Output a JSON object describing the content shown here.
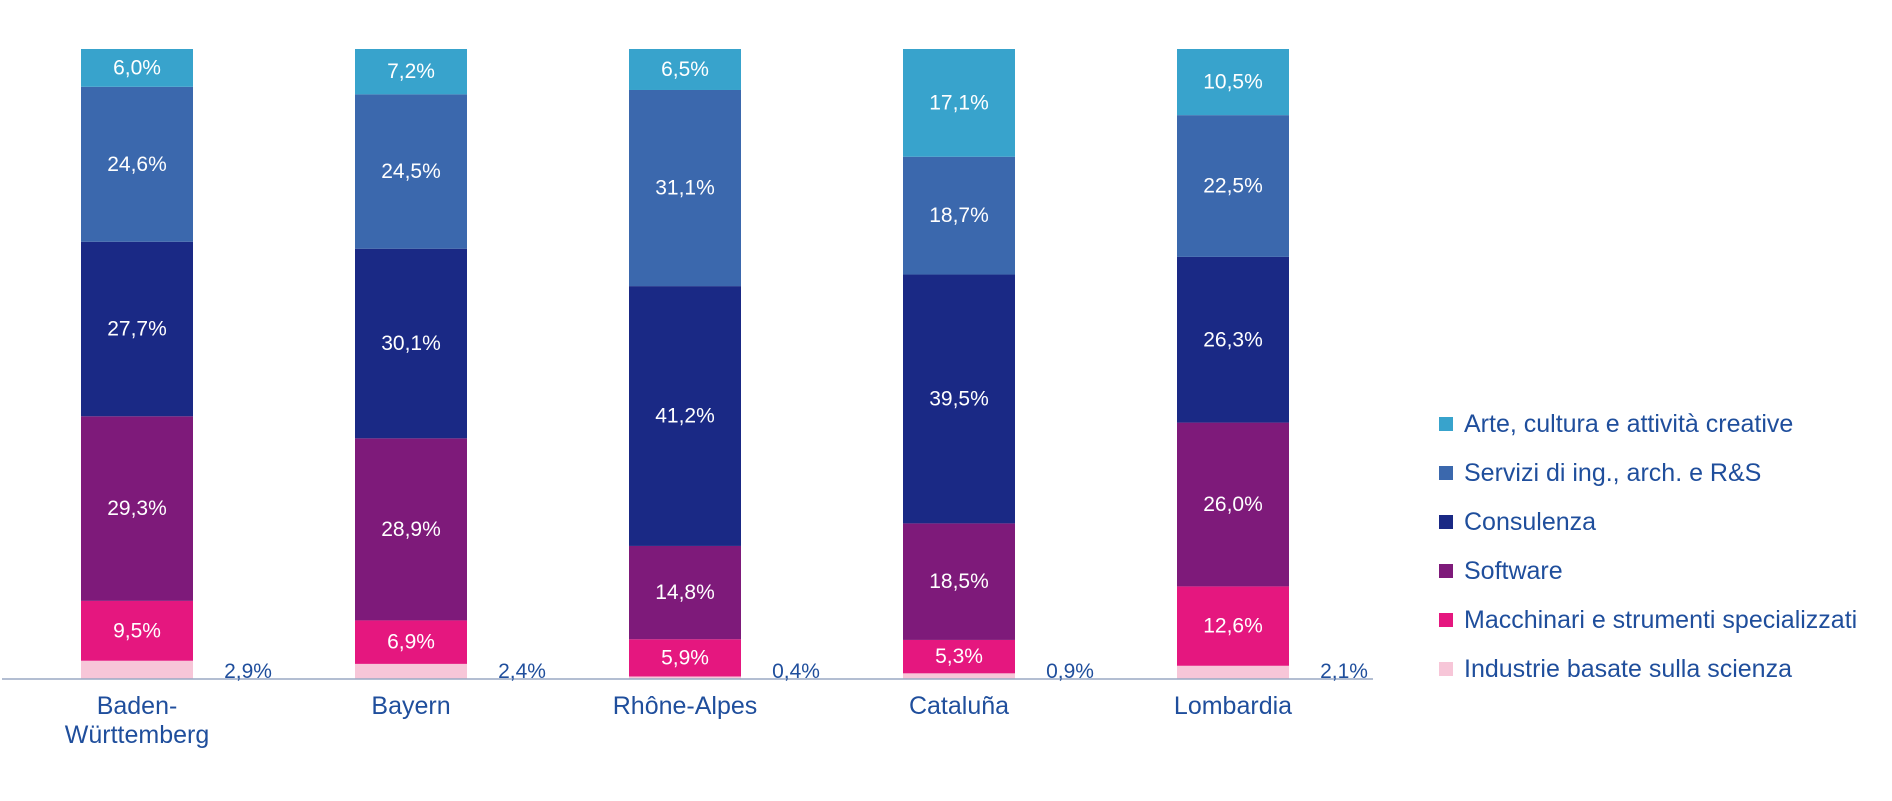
{
  "chart_data": {
    "type": "bar",
    "stacked": true,
    "categories": [
      [
        "Baden-",
        "Württemberg"
      ],
      [
        "Bayern"
      ],
      [
        "Rhône-Alpes"
      ],
      [
        "Cataluña"
      ],
      [
        "Lombardia"
      ]
    ],
    "series": [
      {
        "name": "Industrie basate sulla scienza",
        "color": "#f7c6d8",
        "values": [
          2.9,
          2.4,
          0.4,
          0.9,
          2.1
        ],
        "labels": [
          "2,9%",
          "2,4%",
          "0,4%",
          "0,9%",
          "2,1%"
        ],
        "label_outside": true
      },
      {
        "name": "Macchinari e strumenti specializzati",
        "color": "#e5177f",
        "values": [
          9.5,
          6.9,
          5.9,
          5.3,
          12.6
        ],
        "labels": [
          "9,5%",
          "6,9%",
          "5,9%",
          "5,3%",
          "12,6%"
        ]
      },
      {
        "name": "Software",
        "color": "#7e1a7a",
        "values": [
          29.3,
          28.9,
          14.8,
          18.5,
          26.0
        ],
        "labels": [
          "29,3%",
          "28,9%",
          "14,8%",
          "18,5%",
          "26,0%"
        ]
      },
      {
        "name": "Consulenza",
        "color": "#1a2985",
        "values": [
          27.7,
          30.1,
          41.2,
          39.5,
          26.3
        ],
        "labels": [
          "27,7%",
          "30,1%",
          "41,2%",
          "39,5%",
          "26,3%"
        ]
      },
      {
        "name": "Servizi di ing., arch. e R&S",
        "color": "#3b68ad",
        "values": [
          24.6,
          24.5,
          31.1,
          18.7,
          22.5
        ],
        "labels": [
          "24,6%",
          "24,5%",
          "31,1%",
          "18,7%",
          "22,5%"
        ]
      },
      {
        "name": "Arte, cultura e attività creative",
        "color": "#38a3cc",
        "values": [
          6.0,
          7.2,
          6.5,
          17.1,
          10.5
        ],
        "labels": [
          "6,0%",
          "7,2%",
          "6,5%",
          "17,1%",
          "10,5%"
        ]
      }
    ],
    "legend": {
      "position": "right",
      "order": [
        "Arte, cultura e attività creative",
        "Servizi di ing., arch. e R&S",
        "Consulenza",
        "Software",
        "Macchinari e strumenti specializzati",
        "Industrie basate sulla scienza"
      ]
    },
    "ylim": [
      0,
      100
    ],
    "grid": false,
    "colors": {
      "text": "#1f4e9c",
      "axis": "#9aa9c4",
      "segment_text": "#ffffff"
    }
  }
}
